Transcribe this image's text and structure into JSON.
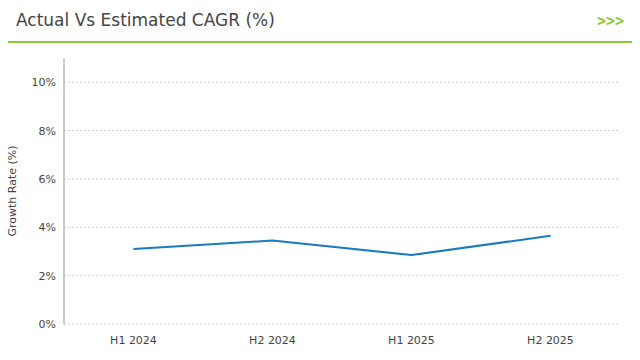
{
  "chart_data": {
    "type": "line",
    "title": "Actual Vs Estimated CAGR (%)",
    "categories": [
      "H1 2024",
      "H2 2024",
      "H1 2025",
      "H2 2025"
    ],
    "values": [
      3.1,
      3.45,
      2.85,
      3.65
    ],
    "color": "#1a7abf",
    "ylabel": "Growth Rate (%)",
    "ylim": [
      0,
      11
    ],
    "yticks": [
      {
        "value": 0,
        "label": "0%"
      },
      {
        "value": 2,
        "label": "2%"
      },
      {
        "value": 4,
        "label": "4%"
      },
      {
        "value": 6,
        "label": "6%"
      },
      {
        "value": 8,
        "label": "8%"
      },
      {
        "value": 10,
        "label": "10%"
      }
    ],
    "grid": true,
    "annotations": [
      ">>>"
    ]
  }
}
